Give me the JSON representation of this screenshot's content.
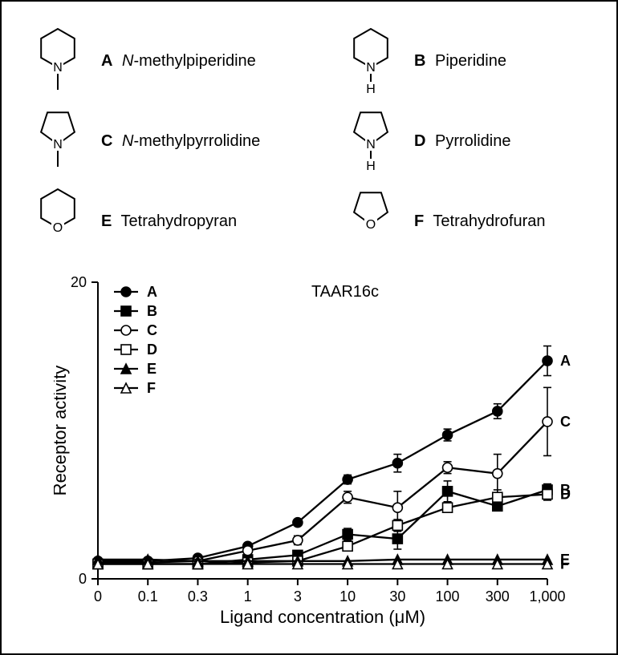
{
  "molecules": [
    {
      "letter": "A",
      "name_html": "<i>N</i>-methylpiperidine",
      "shape": "hex6",
      "subst": "n_me"
    },
    {
      "letter": "B",
      "name_html": "Piperidine",
      "shape": "hex6",
      "subst": "nh"
    },
    {
      "letter": "C",
      "name_html": "<i>N</i>-methylpyrrolidine",
      "shape": "pent5",
      "subst": "n_me"
    },
    {
      "letter": "D",
      "name_html": "Pyrrolidine",
      "shape": "pent5",
      "subst": "nh"
    },
    {
      "letter": "E",
      "name_html": "Tetrahydropyran",
      "shape": "hex6",
      "subst": "o"
    },
    {
      "letter": "F",
      "name_html": "Tetrahydrofuran",
      "shape": "pent5",
      "subst": "o"
    }
  ],
  "chart": {
    "title": "TAAR16c",
    "xlabel_html": "Ligand concentration (μM)",
    "ylabel": "Receptor activity",
    "title_fontsize": 20,
    "axis_label_fontsize": 22,
    "tick_fontsize": 18,
    "legend_fontsize": 18,
    "line_width": 2.3,
    "marker_size": 6,
    "error_cap": 5,
    "colors": {
      "axis": "#000000",
      "background": "#ffffff",
      "line": "#000000",
      "fill_filled": "#000000",
      "fill_open": "#ffffff"
    },
    "ylim": [
      0,
      20
    ],
    "yticks": [
      0,
      20
    ],
    "x_categories": [
      "0",
      "0.1",
      "0.3",
      "1",
      "3",
      "10",
      "30",
      "100",
      "300",
      "1,000"
    ],
    "legend_order": [
      "A",
      "B",
      "C",
      "D",
      "E",
      "F"
    ],
    "end_label_order": [
      "A",
      "C",
      "B",
      "D",
      "E",
      "F"
    ],
    "series": {
      "A": {
        "marker": "circle",
        "fill": "filled",
        "y": [
          1.2,
          1.2,
          1.4,
          2.2,
          3.8,
          6.7,
          7.8,
          9.7,
          11.3,
          14.7
        ],
        "err": [
          0,
          0,
          0,
          0,
          0.2,
          0.3,
          0.6,
          0.4,
          0.5,
          1.0
        ]
      },
      "B": {
        "marker": "square",
        "fill": "filled",
        "y": [
          1.0,
          1.0,
          1.0,
          1.3,
          1.6,
          3.0,
          2.7,
          5.9,
          4.9,
          6.0
        ],
        "err": [
          0,
          0,
          0,
          0,
          0,
          0.4,
          0.7,
          0.7,
          0.3,
          0.4
        ]
      },
      "C": {
        "marker": "circle",
        "fill": "open",
        "y": [
          1.1,
          1.1,
          1.2,
          1.9,
          2.6,
          5.5,
          4.8,
          7.5,
          7.1,
          10.6
        ],
        "err": [
          0,
          0,
          0,
          0.2,
          0.3,
          0.4,
          1.1,
          0.4,
          1.3,
          2.3
        ]
      },
      "D": {
        "marker": "square",
        "fill": "open",
        "y": [
          1.0,
          1.0,
          1.0,
          1.1,
          1.2,
          2.2,
          3.6,
          4.8,
          5.5,
          5.7
        ],
        "err": [
          0,
          0,
          0,
          0,
          0.3,
          0.3,
          0.4,
          0.3,
          0.5,
          0.4
        ]
      },
      "E": {
        "marker": "triangle",
        "fill": "filled",
        "y": [
          1.3,
          1.3,
          1.2,
          1.2,
          1.2,
          1.2,
          1.3,
          1.3,
          1.3,
          1.3
        ],
        "err": [
          0,
          0,
          0,
          0,
          0,
          0,
          0,
          0,
          0,
          0
        ]
      },
      "F": {
        "marker": "triangle",
        "fill": "open",
        "y": [
          1.0,
          1.0,
          1.0,
          1.0,
          1.0,
          1.0,
          1.0,
          1.0,
          1.0,
          1.0
        ],
        "err": [
          0,
          0,
          0,
          0,
          0,
          0,
          0,
          0,
          0,
          0
        ]
      }
    }
  }
}
